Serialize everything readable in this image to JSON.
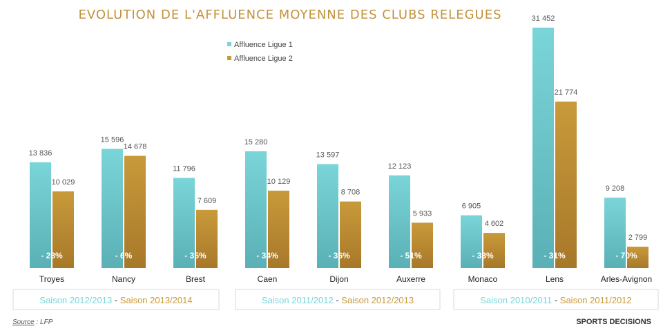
{
  "colors": {
    "ligue1": "#7ad5d8",
    "ligue1_dark": "#5ab0b5",
    "ligue2": "#c89a3a",
    "ligue2_dark": "#a8782a",
    "title": "#c2923a"
  },
  "chart_data": {
    "type": "bar",
    "title": "EVOLUTION DE L'AFFLUENCE MOYENNE DES CLUBS RELEGUES",
    "categories": [
      "Troyes",
      "Nancy",
      "Brest",
      "Caen",
      "Dijon",
      "Auxerre",
      "Monaco",
      "Lens",
      "Arles-Avignon"
    ],
    "series": [
      {
        "name": "Affluence Ligue 1",
        "values": [
          13836,
          15596,
          11796,
          15280,
          13597,
          12123,
          6905,
          31452,
          9208
        ]
      },
      {
        "name": "Affluence Ligue 2",
        "values": [
          10029,
          14678,
          7609,
          10129,
          8708,
          5933,
          4602,
          21774,
          2799
        ]
      }
    ],
    "value_labels": {
      "ligue1": [
        "13 836",
        "15 596",
        "11 796",
        "15 280",
        "13 597",
        "12 123",
        "6 905",
        "31 452",
        "9 208"
      ],
      "ligue2": [
        "10 029",
        "14 678",
        "7 609",
        "10 129",
        "8 708",
        "5 933",
        "4 602",
        "21 774",
        "2 799"
      ]
    },
    "changes": [
      "- 28%",
      "- 6%",
      "- 35%",
      "- 34%",
      "- 36%",
      "- 51%",
      "- 33%",
      "- 31%",
      "- 70%"
    ],
    "seasons": [
      {
        "first": "Saison 2012/2013",
        "sep": " - ",
        "second": "Saison 2013/2014"
      },
      {
        "first": "Saison 2011/2012",
        "sep": " - ",
        "second": "Saison 2012/2013"
      },
      {
        "first": "Saison 2010/2011",
        "sep": " - ",
        "second": "Saison 2011/2012"
      }
    ],
    "legend_position": "top-center",
    "grid": false
  },
  "footer": {
    "source_label": "Source",
    "source_value": " : LFP",
    "brand": "SPORTS DECISIONS"
  }
}
